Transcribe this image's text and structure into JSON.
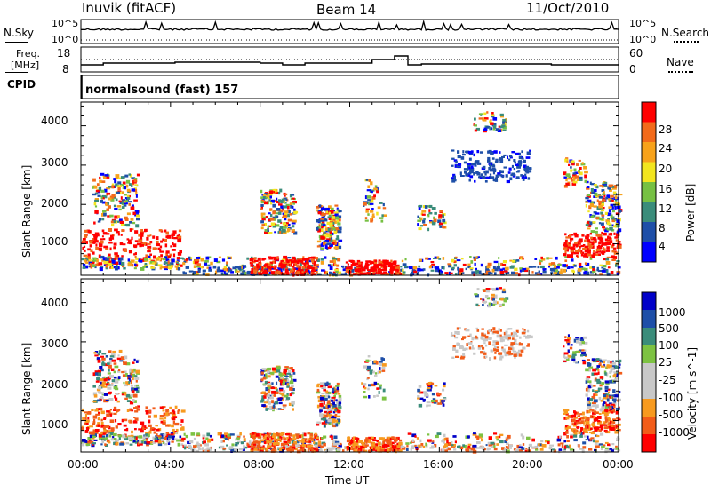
{
  "header": {
    "station": "Inuvik (fitACF)",
    "beam": "Beam 14",
    "date": "11/Oct/2010"
  },
  "noise_panel": {
    "left_label": "N.Sky",
    "right_label": "N.Search",
    "tick_top": "10^5",
    "tick_bottom": "10^0"
  },
  "freq_panel": {
    "left_label_line1": "Freq.",
    "left_label_line2": "[MHz]",
    "right_label": "Nave",
    "left_ticks": [
      "18",
      "8"
    ],
    "right_ticks": [
      "60",
      "0"
    ]
  },
  "cpid_panel": {
    "label": "CPID",
    "mode_text": "normalsound (fast) 157"
  },
  "colors": {
    "power_scale": [
      "#0000ff",
      "#1e4fa8",
      "#3a8c7a",
      "#76c043",
      "#f2e51f",
      "#f7a21b",
      "#f26a1b",
      "#ff0000"
    ],
    "velocity_scale": [
      "#ff0000",
      "#f25c19",
      "#f79a1f",
      "#c8c8c8",
      "#c8c8c8",
      "#7dc242",
      "#3a8c7a",
      "#1e4fa8",
      "#0000c8"
    ]
  },
  "chart_data": [
    {
      "type": "heatmap",
      "title": "",
      "xlabel": "Time UT",
      "ylabel": "Slant Range [km]",
      "x_ticks": [
        "00:00",
        "04:00",
        "08:00",
        "12:00",
        "16:00",
        "20:00",
        "00:00"
      ],
      "y_ticks": [
        "1000",
        "2000",
        "3000",
        "4000"
      ],
      "ylim": [
        200,
        4600
      ],
      "colorbar": {
        "label": "Power [dB]",
        "ticks": [
          "4",
          "8",
          "12",
          "16",
          "20",
          "24",
          "28"
        ]
      }
    },
    {
      "type": "heatmap",
      "title": "",
      "xlabel": "Time UT",
      "ylabel": "Slant Range [km]",
      "x_ticks": [
        "00:00",
        "04:00",
        "08:00",
        "12:00",
        "16:00",
        "20:00",
        "00:00"
      ],
      "y_ticks": [
        "1000",
        "2000",
        "3000",
        "4000"
      ],
      "ylim": [
        200,
        4600
      ],
      "colorbar": {
        "label": "Velocity [m s^-1]",
        "ticks": [
          "1000",
          "500",
          "100",
          "25",
          "-25",
          "-100",
          "-500",
          "-1000"
        ]
      }
    }
  ]
}
